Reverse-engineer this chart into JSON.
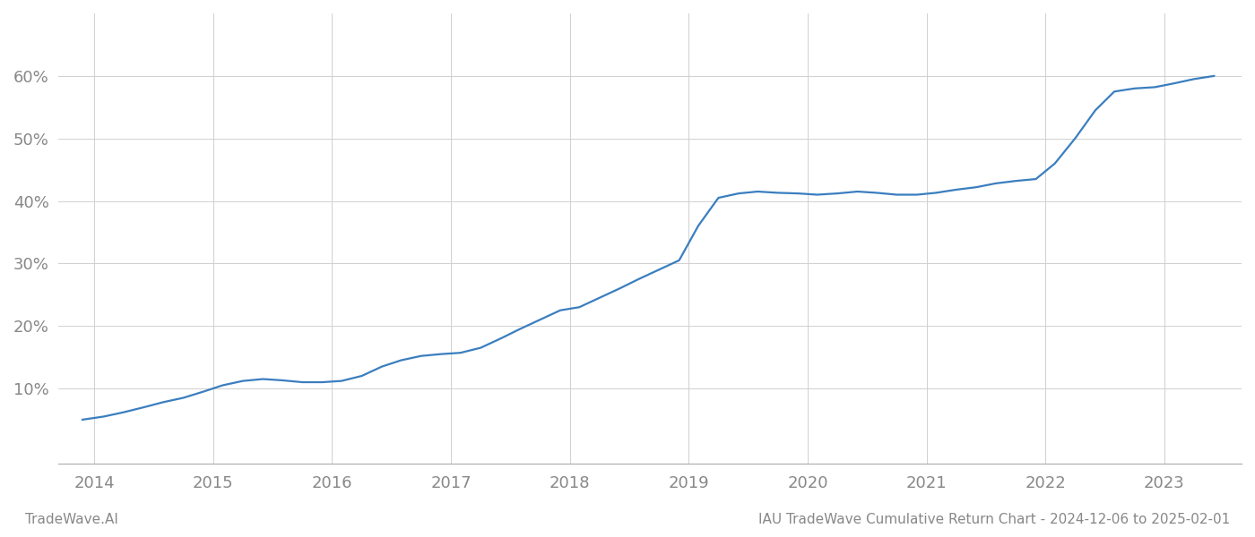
{
  "title": "",
  "footer_left": "TradeWave.AI",
  "footer_right": "IAU TradeWave Cumulative Return Chart - 2024-12-06 to 2025-02-01",
  "line_color": "#3a7ebf",
  "line_width": 1.6,
  "background_color": "#ffffff",
  "grid_color": "#d0d0d0",
  "x_years": [
    2014,
    2015,
    2016,
    2017,
    2018,
    2019,
    2020,
    2021,
    2022,
    2023
  ],
  "data_x": [
    2013.9,
    2014.08,
    2014.25,
    2014.42,
    2014.58,
    2014.75,
    2014.92,
    2015.08,
    2015.25,
    2015.42,
    2015.58,
    2015.75,
    2015.92,
    2016.08,
    2016.25,
    2016.42,
    2016.58,
    2016.75,
    2016.92,
    2017.08,
    2017.25,
    2017.42,
    2017.58,
    2017.75,
    2017.92,
    2018.08,
    2018.25,
    2018.42,
    2018.58,
    2018.75,
    2018.92,
    2019.08,
    2019.25,
    2019.42,
    2019.58,
    2019.75,
    2019.92,
    2020.08,
    2020.25,
    2020.42,
    2020.58,
    2020.75,
    2020.92,
    2021.08,
    2021.25,
    2021.42,
    2021.58,
    2021.75,
    2021.92,
    2022.08,
    2022.25,
    2022.42,
    2022.58,
    2022.75,
    2022.92,
    2023.08,
    2023.25,
    2023.42
  ],
  "data_y": [
    5.0,
    5.5,
    6.2,
    7.0,
    7.8,
    8.5,
    9.5,
    10.5,
    11.2,
    11.5,
    11.3,
    11.0,
    11.0,
    11.2,
    12.0,
    13.5,
    14.5,
    15.2,
    15.5,
    15.7,
    16.5,
    18.0,
    19.5,
    21.0,
    22.5,
    23.0,
    24.5,
    26.0,
    27.5,
    29.0,
    30.5,
    36.0,
    40.5,
    41.2,
    41.5,
    41.3,
    41.2,
    41.0,
    41.2,
    41.5,
    41.3,
    41.0,
    41.0,
    41.3,
    41.8,
    42.2,
    42.8,
    43.2,
    43.5,
    46.0,
    50.0,
    54.5,
    57.5,
    58.0,
    58.2,
    58.8,
    59.5,
    60.0
  ],
  "ylim": [
    -2,
    70
  ],
  "xlim": [
    2013.7,
    2023.65
  ],
  "yticks": [
    10,
    20,
    30,
    40,
    50,
    60
  ],
  "ytick_labels": [
    "10%",
    "20%",
    "30%",
    "40%",
    "50%",
    "60%"
  ],
  "tick_color": "#888888",
  "tick_fontsize": 13,
  "footer_fontsize": 11
}
